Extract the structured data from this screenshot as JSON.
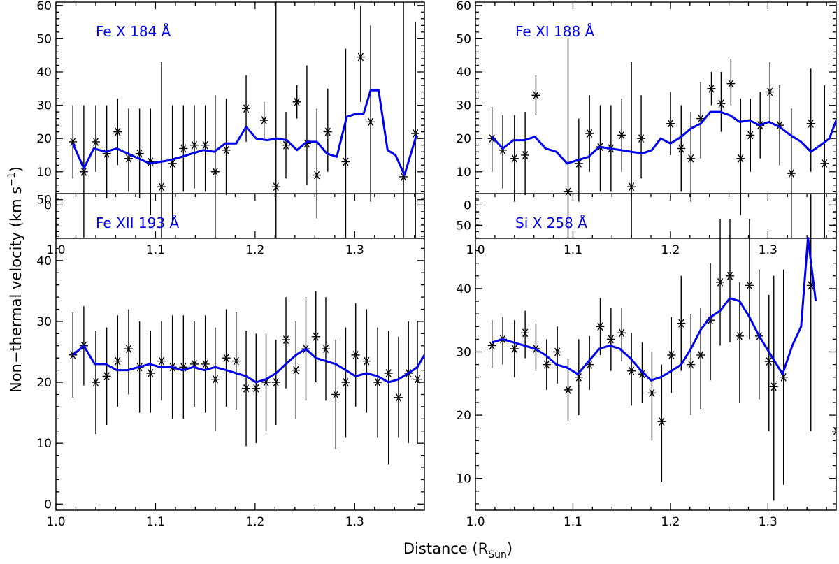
{
  "figure": {
    "xlabel": "Distance (R",
    "xlabel_sub": "Sun",
    "xlabel_close": ")",
    "ylabel": "Non−thermal velocity (km s",
    "ylabel_sup": "−1",
    "ylabel_close": ")"
  },
  "chart_data": [
    {
      "type": "line",
      "title": "Fe X 184 Å",
      "xlabel": "Distance (R_Sun)",
      "ylabel": "Non-thermal velocity (km s^-1)",
      "xlim": [
        1.0,
        1.37
      ],
      "ylim": [
        -10,
        61
      ],
      "xticks": [
        1.0,
        1.1,
        1.2,
        1.3
      ],
      "xtick_labels": [
        "1.0",
        "1.1",
        "1.2",
        "1.3"
      ],
      "yticks": [
        0,
        10,
        20,
        30,
        40,
        50,
        60
      ],
      "ytick_labels": [
        "0",
        "10",
        "20",
        "30",
        "40",
        "50",
        "60"
      ],
      "grid": false,
      "color": "#0000ee",
      "points": {
        "x": [
          1.017,
          1.028,
          1.04,
          1.051,
          1.062,
          1.073,
          1.084,
          1.095,
          1.106,
          1.117,
          1.128,
          1.139,
          1.15,
          1.16,
          1.171,
          1.191,
          1.209,
          1.221,
          1.231,
          1.242,
          1.252,
          1.262,
          1.273,
          1.291,
          1.306,
          1.316,
          1.349,
          1.361
        ],
        "y": [
          19,
          10,
          19,
          15.5,
          22,
          14,
          15.5,
          13,
          5.5,
          12.5,
          17,
          18,
          18,
          10,
          16.5,
          29,
          25.5,
          5.5,
          18,
          31,
          18.5,
          9,
          22,
          13,
          44.5,
          25,
          8.5,
          21.5
        ],
        "err_low": [
          8,
          -10,
          10,
          2,
          12,
          4,
          2,
          -3,
          -10,
          -5,
          4,
          5,
          4,
          -10,
          3,
          19,
          20,
          -10,
          8,
          26,
          6,
          -4,
          10,
          -10,
          31,
          1,
          -10,
          -10
        ],
        "err_high": [
          30,
          30,
          30,
          30,
          32,
          29,
          29,
          29,
          43,
          30,
          30,
          30,
          30,
          33,
          32,
          39,
          31,
          61,
          28,
          36,
          42,
          29,
          35,
          47,
          60,
          54,
          61,
          55
        ]
      },
      "line": {
        "x": [
          1.017,
          1.028,
          1.038,
          1.05,
          1.061,
          1.072,
          1.083,
          1.094,
          1.105,
          1.115,
          1.126,
          1.137,
          1.148,
          1.159,
          1.17,
          1.181,
          1.191,
          1.201,
          1.212,
          1.222,
          1.232,
          1.242,
          1.252,
          1.262,
          1.272,
          1.282,
          1.292,
          1.302,
          1.309,
          1.316,
          1.324,
          1.333,
          1.341,
          1.35,
          1.362
        ],
        "y": [
          18.5,
          11,
          17,
          16,
          17,
          15.5,
          14,
          12.5,
          13,
          13.5,
          14.5,
          15.5,
          16.5,
          16,
          18.5,
          18.5,
          23.5,
          20,
          19.5,
          20,
          19.5,
          16.5,
          19,
          19,
          15.5,
          14.5,
          26.5,
          27.5,
          27.5,
          34.5,
          34.5,
          16.5,
          15,
          9,
          21
        ]
      }
    },
    {
      "type": "line",
      "title": "Fe XI 188 Å",
      "xlabel": "Distance (R_Sun)",
      "ylabel": "Non-thermal velocity (km s^-1)",
      "xlim": [
        1.0,
        1.37
      ],
      "ylim": [
        -10,
        61
      ],
      "xticks": [
        1.0,
        1.1,
        1.2,
        1.3
      ],
      "xtick_labels": [
        "1.0",
        "1.1",
        "1.2",
        "1.3"
      ],
      "yticks": [
        0,
        10,
        20,
        30,
        40,
        50,
        60
      ],
      "ytick_labels": [
        "0",
        "10",
        "20",
        "30",
        "40",
        "50",
        "60"
      ],
      "grid": false,
      "color": "#0000ee",
      "points": {
        "x": [
          1.017,
          1.028,
          1.04,
          1.051,
          1.062,
          1.095,
          1.106,
          1.117,
          1.128,
          1.139,
          1.15,
          1.16,
          1.17,
          1.2,
          1.211,
          1.221,
          1.231,
          1.242,
          1.252,
          1.262,
          1.272,
          1.282,
          1.292,
          1.302,
          1.312,
          1.324,
          1.344,
          1.358
        ],
        "y": [
          20,
          16.5,
          14,
          15,
          33,
          4,
          12.5,
          21.5,
          17.5,
          17,
          21,
          5.5,
          20,
          24.5,
          17,
          14,
          26,
          35,
          30.5,
          36.5,
          14,
          21,
          24,
          34,
          24,
          9.5,
          24.5,
          12.5
        ],
        "err_low": [
          10,
          5,
          1,
          3,
          27,
          -10,
          1,
          10,
          4,
          4,
          10,
          -10,
          8,
          15,
          4,
          1,
          14,
          30,
          22,
          30,
          -3,
          10,
          14,
          25,
          12,
          -10,
          10,
          -10
        ],
        "err_high": [
          29.5,
          27,
          27,
          28,
          39,
          50,
          26,
          33,
          30,
          30,
          32,
          43,
          33,
          34,
          30,
          28,
          37,
          40,
          40,
          44,
          32,
          32,
          34,
          43,
          36,
          29,
          41,
          36
        ]
      },
      "line": {
        "x": [
          1.017,
          1.028,
          1.039,
          1.05,
          1.061,
          1.072,
          1.083,
          1.094,
          1.105,
          1.116,
          1.127,
          1.138,
          1.149,
          1.16,
          1.171,
          1.181,
          1.19,
          1.2,
          1.211,
          1.221,
          1.231,
          1.241,
          1.251,
          1.261,
          1.271,
          1.281,
          1.291,
          1.301,
          1.312,
          1.323,
          1.334,
          1.344,
          1.354,
          1.363,
          1.37
        ],
        "y": [
          20.5,
          17,
          19.5,
          19.5,
          20.5,
          17,
          16,
          12.5,
          13.5,
          14.5,
          17.5,
          17,
          16.5,
          16,
          15.5,
          16.5,
          20,
          18.5,
          20.5,
          23,
          24.5,
          28,
          28,
          27,
          25,
          25.5,
          24,
          25,
          23.5,
          21,
          19,
          16,
          18,
          20,
          25.5
        ]
      }
    },
    {
      "type": "line",
      "title": "Fe XII 193 Å",
      "xlabel": "Distance (R_Sun)",
      "ylabel": "Non-thermal velocity (km s^-1)",
      "xlim": [
        1.0,
        1.37
      ],
      "ylim": [
        -1,
        51
      ],
      "xticks": [
        1.0,
        1.1,
        1.2,
        1.3
      ],
      "xtick_labels": [
        "1.0",
        "1.1",
        "1.2",
        "1.3"
      ],
      "yticks": [
        0,
        10,
        20,
        30,
        40,
        50
      ],
      "ytick_labels": [
        "0",
        "10",
        "20",
        "30",
        "40",
        "50"
      ],
      "grid": false,
      "color": "#0000ee",
      "points": {
        "x": [
          1.017,
          1.028,
          1.04,
          1.051,
          1.062,
          1.073,
          1.084,
          1.095,
          1.106,
          1.117,
          1.128,
          1.139,
          1.15,
          1.16,
          1.171,
          1.181,
          1.191,
          1.201,
          1.211,
          1.221,
          1.231,
          1.241,
          1.251,
          1.261,
          1.271,
          1.281,
          1.291,
          1.301,
          1.312,
          1.323,
          1.334,
          1.344,
          1.354,
          1.363
        ],
        "y": [
          24.5,
          26,
          20,
          21,
          23.5,
          25.5,
          22.5,
          21.5,
          23.5,
          22.5,
          22.5,
          23,
          23,
          20.5,
          24,
          23.5,
          19,
          19,
          20,
          20,
          27,
          22,
          25.5,
          27.5,
          25.5,
          18,
          20,
          24.5,
          23.5,
          20,
          21.5,
          17.5,
          21.5,
          20.5
        ],
        "err_low": [
          17.5,
          19.5,
          11.5,
          13,
          16,
          18,
          15,
          15,
          17,
          14,
          14,
          16,
          15,
          12,
          16,
          15.5,
          9.5,
          10,
          12,
          13,
          19,
          14,
          17,
          20,
          17,
          9,
          11,
          16,
          15,
          11,
          6.5,
          11,
          10,
          10
        ],
        "err_high": [
          31.5,
          32.5,
          28.5,
          29,
          31,
          32,
          30,
          28.5,
          30,
          31,
          31,
          30,
          31,
          29,
          32,
          31.5,
          28.5,
          28,
          28,
          27,
          34,
          30,
          34,
          35,
          34,
          27,
          29,
          33,
          32,
          29,
          28.5,
          27.5,
          30,
          30
        ]
      },
      "line": {
        "x": [
          1.017,
          1.028,
          1.039,
          1.05,
          1.061,
          1.072,
          1.083,
          1.094,
          1.105,
          1.116,
          1.127,
          1.138,
          1.149,
          1.16,
          1.171,
          1.181,
          1.191,
          1.201,
          1.211,
          1.221,
          1.231,
          1.241,
          1.251,
          1.261,
          1.271,
          1.281,
          1.291,
          1.301,
          1.312,
          1.323,
          1.334,
          1.344,
          1.354,
          1.363,
          1.37
        ],
        "y": [
          24.5,
          26,
          23,
          23,
          22,
          22,
          22.5,
          23,
          22.5,
          22.5,
          22,
          22.5,
          22,
          22.5,
          22,
          21.5,
          21,
          20,
          20.5,
          21.5,
          23,
          24.5,
          25.5,
          24,
          23.5,
          23,
          22,
          21,
          21.5,
          21,
          20,
          20.5,
          21.5,
          22.5,
          24.5
        ]
      }
    },
    {
      "type": "line",
      "title": "Si X 258 Å",
      "xlabel": "Distance (R_Sun)",
      "ylabel": "Non-thermal velocity (km s^-1)",
      "xlim": [
        1.0,
        1.37
      ],
      "ylim": [
        5,
        55
      ],
      "xticks": [
        1.0,
        1.1,
        1.2,
        1.3
      ],
      "xtick_labels": [
        "1.0",
        "1.1",
        "1.2",
        "1.3"
      ],
      "yticks": [
        10,
        20,
        30,
        40,
        50
      ],
      "ytick_labels": [
        "10",
        "20",
        "30",
        "40",
        "50"
      ],
      "grid": false,
      "color": "#0000ee",
      "points": {
        "x": [
          1.017,
          1.028,
          1.04,
          1.051,
          1.062,
          1.073,
          1.084,
          1.095,
          1.106,
          1.117,
          1.128,
          1.139,
          1.15,
          1.16,
          1.171,
          1.181,
          1.191,
          1.201,
          1.211,
          1.221,
          1.231,
          1.241,
          1.251,
          1.261,
          1.271,
          1.281,
          1.291,
          1.301,
          1.306,
          1.316,
          1.344,
          1.37
        ],
        "y": [
          31,
          32,
          30.5,
          33,
          30.5,
          28,
          30,
          24,
          26,
          28,
          34,
          32,
          33,
          27,
          26.5,
          23.5,
          19,
          29.5,
          34.5,
          28,
          29.5,
          35,
          41,
          42,
          32.5,
          40.5,
          32.5,
          28.5,
          24.5,
          26,
          40.5,
          17.5
        ],
        "err_low": [
          27.5,
          28,
          26,
          29,
          27,
          24,
          25,
          19,
          20,
          24,
          29.5,
          27,
          28.5,
          21.5,
          22,
          16,
          9.5,
          23.5,
          27,
          20,
          21,
          25.5,
          31,
          31.5,
          22,
          32,
          22.5,
          17.5,
          6.5,
          9,
          17.5,
          5
        ],
        "err_high": [
          35,
          35.5,
          35,
          36.5,
          34.5,
          32,
          34,
          29,
          32,
          32.5,
          38.5,
          37,
          37,
          33,
          31.5,
          30,
          28,
          35.5,
          42,
          36,
          37,
          44,
          51,
          51,
          41,
          51,
          43,
          39,
          42,
          43,
          55,
          55
        ]
      },
      "line": {
        "x": [
          1.017,
          1.028,
          1.039,
          1.05,
          1.061,
          1.072,
          1.083,
          1.094,
          1.105,
          1.116,
          1.127,
          1.138,
          1.148,
          1.159,
          1.17,
          1.18,
          1.19,
          1.201,
          1.211,
          1.221,
          1.231,
          1.241,
          1.251,
          1.261,
          1.271,
          1.281,
          1.291,
          1.301,
          1.315,
          1.325,
          1.334,
          1.341,
          1.349
        ],
        "y": [
          31.5,
          32,
          31.5,
          31,
          30.5,
          29.5,
          28,
          27.5,
          26.5,
          28.5,
          30.5,
          31,
          30.5,
          29,
          27,
          25.5,
          26,
          27,
          28,
          30.5,
          33.5,
          35.5,
          36.5,
          38.5,
          38,
          35.5,
          32.5,
          30,
          26.5,
          31,
          34,
          48,
          38
        ]
      }
    }
  ]
}
